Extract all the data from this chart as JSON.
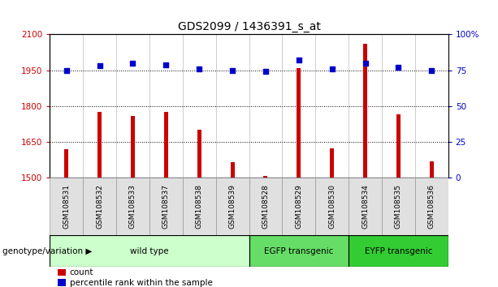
{
  "title": "GDS2099 / 1436391_s_at",
  "samples": [
    "GSM108531",
    "GSM108532",
    "GSM108533",
    "GSM108537",
    "GSM108538",
    "GSM108539",
    "GSM108528",
    "GSM108529",
    "GSM108530",
    "GSM108534",
    "GSM108535",
    "GSM108536"
  ],
  "counts": [
    1620,
    1775,
    1760,
    1775,
    1700,
    1565,
    1510,
    1960,
    1625,
    2060,
    1765,
    1570
  ],
  "percentiles": [
    75,
    78,
    80,
    79,
    76,
    75,
    74,
    82,
    76,
    80,
    77,
    75
  ],
  "bar_color": "#cc0000",
  "dot_color": "#0000cc",
  "ylim_left": [
    1500,
    2100
  ],
  "ylim_right": [
    0,
    100
  ],
  "yticks_left": [
    1500,
    1650,
    1800,
    1950,
    2100
  ],
  "yticks_right": [
    0,
    25,
    50,
    75,
    100
  ],
  "ytick_labels_right": [
    "0",
    "25",
    "50",
    "75",
    "100%"
  ],
  "groups": [
    {
      "label": "wild type",
      "start": 0,
      "end": 6,
      "color": "#ccffcc"
    },
    {
      "label": "EGFP transgenic",
      "start": 6,
      "end": 9,
      "color": "#66dd66"
    },
    {
      "label": "EYFP transgenic",
      "start": 9,
      "end": 12,
      "color": "#33cc33"
    }
  ],
  "xlabel_genotype": "genotype/variation",
  "legend_count_label": "count",
  "legend_pct_label": "percentile rank within the sample",
  "grid_color": "#000000",
  "background_color": "#ffffff",
  "title_fontsize": 10,
  "axis_label_color_left": "#cc0000",
  "axis_label_color_right": "#0000cc",
  "bar_width": 0.12
}
